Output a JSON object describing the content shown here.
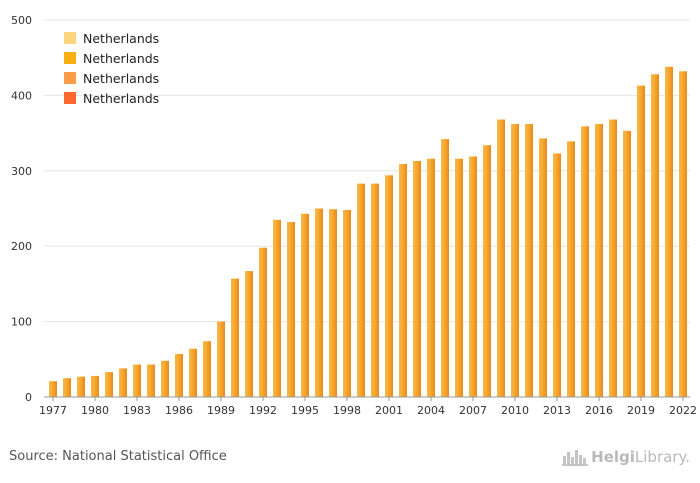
{
  "chart_data": {
    "type": "bar",
    "years": [
      1977,
      1978,
      1979,
      1980,
      1981,
      1982,
      1983,
      1984,
      1985,
      1986,
      1987,
      1988,
      1989,
      1990,
      1991,
      1992,
      1993,
      1994,
      1995,
      1996,
      1997,
      1998,
      1999,
      2000,
      2001,
      2002,
      2003,
      2004,
      2005,
      2006,
      2007,
      2008,
      2009,
      2010,
      2011,
      2012,
      2013,
      2014,
      2015,
      2016,
      2017,
      2018,
      2019,
      2020,
      2021,
      2022
    ],
    "x_tick_labels": [
      "1977",
      "1980",
      "1983",
      "1986",
      "1989",
      "1992",
      "1995",
      "1998",
      "2001",
      "2004",
      "2007",
      "2010",
      "2013",
      "2016",
      "2019",
      "2022"
    ],
    "values": [
      21,
      25,
      27,
      28,
      33,
      38,
      43,
      43,
      48,
      57,
      64,
      74,
      100,
      157,
      167,
      198,
      235,
      232,
      243,
      250,
      249,
      248,
      283,
      283,
      294,
      309,
      313,
      316,
      342,
      316,
      319,
      334,
      368,
      362,
      362,
      343,
      323,
      339,
      359,
      362,
      368,
      353,
      413,
      428,
      438,
      432
    ],
    "ylim": [
      0,
      500
    ],
    "y_ticks": [
      0,
      100,
      200,
      300,
      400,
      500
    ],
    "grid": true,
    "legend_position": "top-left",
    "series_color": "#F7A930"
  },
  "legend": {
    "items": [
      {
        "label": "Netherlands",
        "color": "#FDD57E"
      },
      {
        "label": "Netherlands",
        "color": "#F9AE12"
      },
      {
        "label": "Netherlands",
        "color": "#FB9D48"
      },
      {
        "label": "Netherlands",
        "color": "#F9692D"
      }
    ]
  },
  "footer": {
    "source": "Source: National Statistical Office",
    "logo_icon": "city-skyline-icon",
    "logo_part1": "Helgi",
    "logo_part2": "Library",
    "logo_suffix": "."
  }
}
